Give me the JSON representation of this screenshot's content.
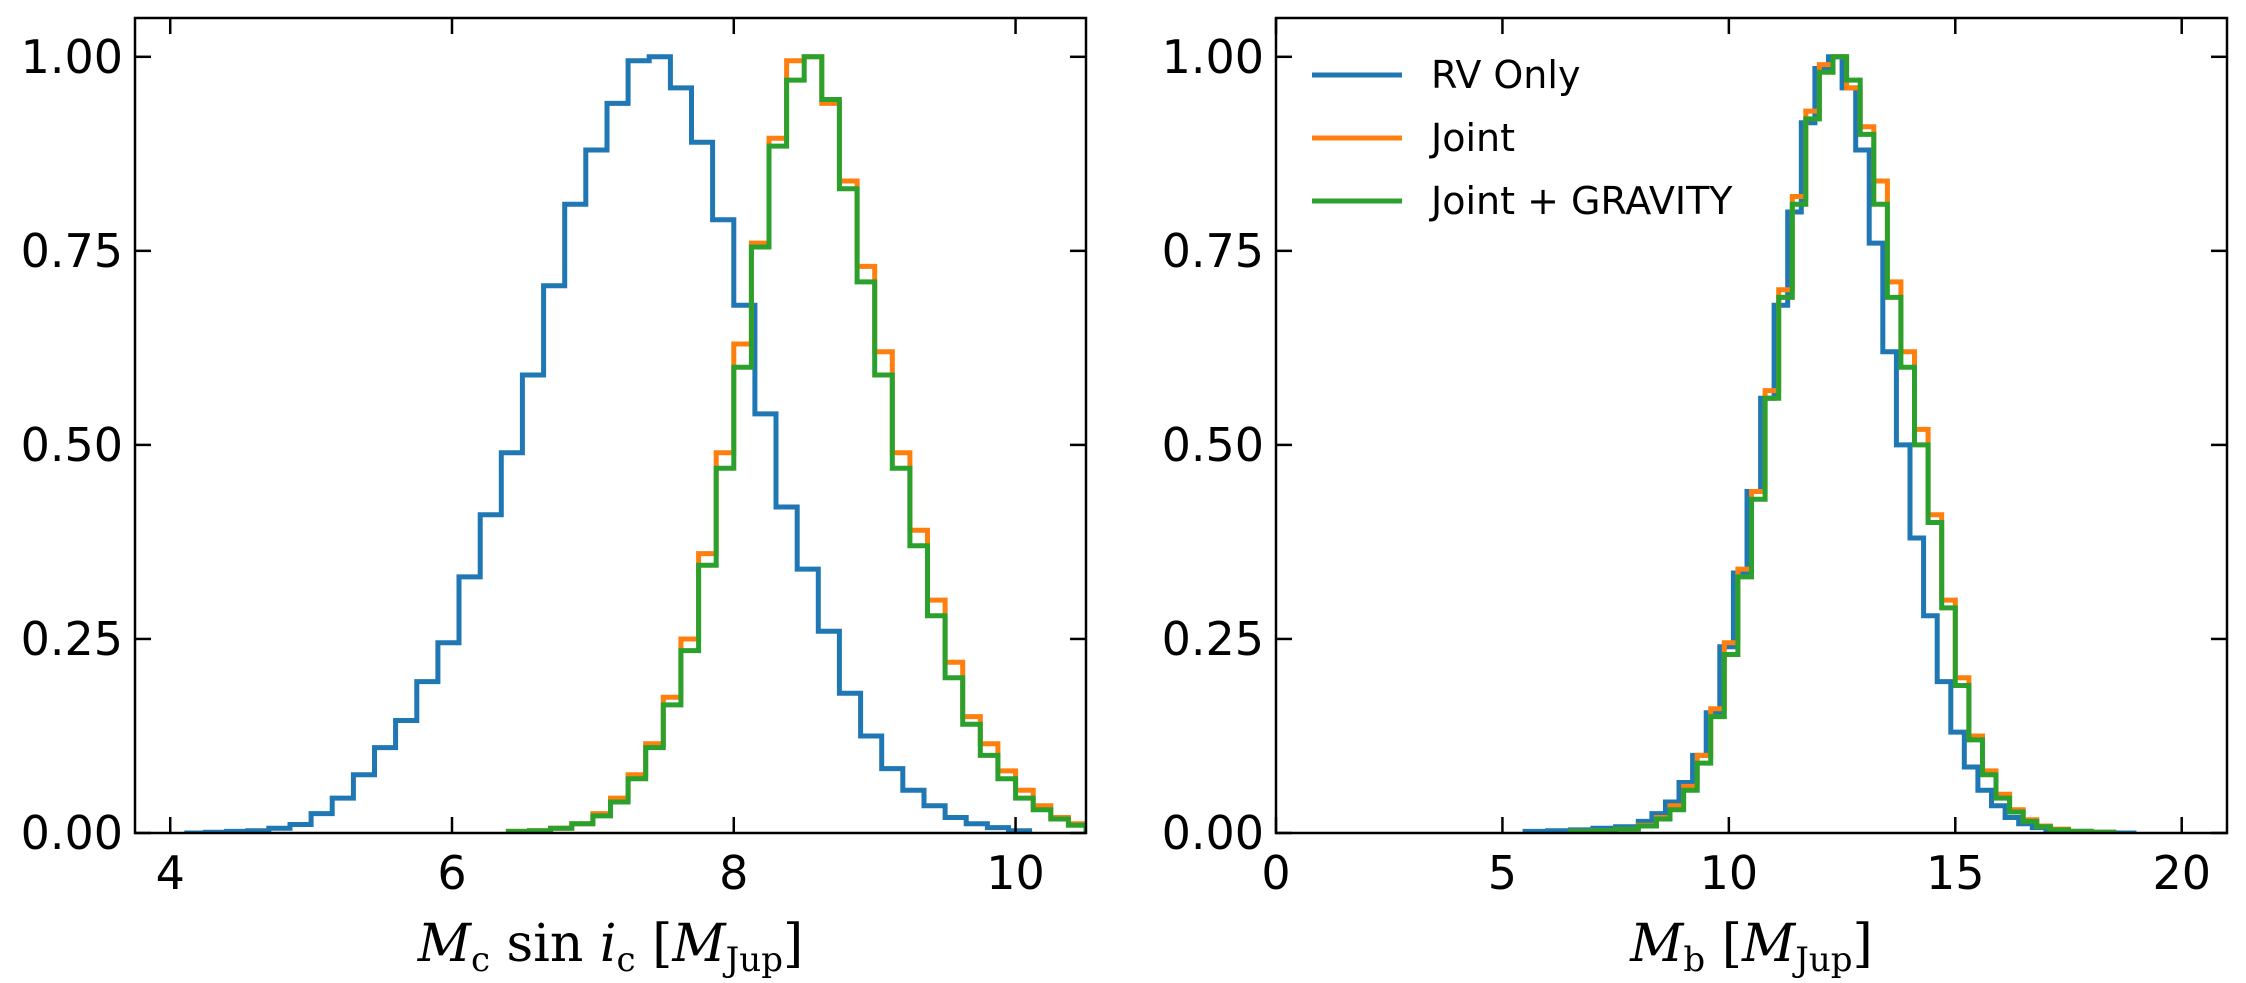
{
  "chart_data": [
    {
      "type": "histogram",
      "panel": "left",
      "xlabel": {
        "main": "M",
        "sub": "c",
        "mid": " sin ",
        "ivar": "i",
        "isub": "c",
        "open": " [",
        "unit": "M",
        "unitsub": "Jup",
        "close": "]"
      },
      "ylabel": "",
      "xlim": [
        3.75,
        10.5
      ],
      "ylim": [
        0,
        1.05
      ],
      "xticks": [
        4,
        6,
        8,
        10
      ],
      "xticklabels": [
        "4",
        "6",
        "8",
        "10"
      ],
      "yticks": [
        0,
        0.25,
        0.5,
        0.75,
        1.0
      ],
      "yticklabels": [
        "0.00",
        "0.25",
        "0.50",
        "0.75",
        "1.00"
      ],
      "series": [
        {
          "color": "#1f77b4",
          "edges": [
            4.1,
            4.25,
            4.4,
            4.55,
            4.7,
            4.85,
            5.0,
            5.15,
            5.3,
            5.45,
            5.6,
            5.75,
            5.9,
            6.05,
            6.2,
            6.35,
            6.5,
            6.65,
            6.8,
            6.95,
            7.1,
            7.25,
            7.4,
            7.55,
            7.7,
            7.85,
            8.0,
            8.15,
            8.3,
            8.45,
            8.6,
            8.75,
            8.9,
            9.05,
            9.2,
            9.35,
            9.5,
            9.65,
            9.8,
            9.95,
            10.1
          ],
          "values": [
            0.0,
            0.001,
            0.002,
            0.003,
            0.006,
            0.011,
            0.025,
            0.045,
            0.075,
            0.11,
            0.145,
            0.195,
            0.245,
            0.33,
            0.41,
            0.49,
            0.59,
            0.705,
            0.81,
            0.88,
            0.94,
            0.995,
            1.0,
            0.96,
            0.89,
            0.79,
            0.68,
            0.54,
            0.42,
            0.34,
            0.26,
            0.18,
            0.125,
            0.083,
            0.055,
            0.035,
            0.02,
            0.012,
            0.007,
            0.003
          ]
        },
        {
          "color": "#ff7f0e",
          "edges": [
            6.4,
            6.55,
            6.7,
            6.85,
            7.0,
            7.125,
            7.25,
            7.375,
            7.5,
            7.625,
            7.75,
            7.875,
            8.0,
            8.125,
            8.25,
            8.375,
            8.5,
            8.625,
            8.75,
            8.875,
            9.0,
            9.125,
            9.25,
            9.375,
            9.5,
            9.625,
            9.75,
            9.875,
            10.0,
            10.125,
            10.25,
            10.375,
            10.5
          ],
          "values": [
            0.002,
            0.003,
            0.006,
            0.012,
            0.025,
            0.045,
            0.075,
            0.115,
            0.175,
            0.25,
            0.36,
            0.49,
            0.63,
            0.76,
            0.895,
            0.995,
            1.0,
            0.94,
            0.84,
            0.73,
            0.62,
            0.49,
            0.39,
            0.3,
            0.22,
            0.15,
            0.115,
            0.08,
            0.055,
            0.035,
            0.02,
            0.012
          ]
        },
        {
          "color": "#2ca02c",
          "edges": [
            6.4,
            6.55,
            6.7,
            6.85,
            7.0,
            7.125,
            7.25,
            7.375,
            7.5,
            7.625,
            7.75,
            7.875,
            8.0,
            8.125,
            8.25,
            8.375,
            8.5,
            8.625,
            8.75,
            8.875,
            9.0,
            9.125,
            9.25,
            9.375,
            9.5,
            9.625,
            9.75,
            9.875,
            10.0,
            10.125,
            10.25,
            10.375,
            10.5
          ],
          "values": [
            0.002,
            0.003,
            0.006,
            0.012,
            0.022,
            0.04,
            0.07,
            0.11,
            0.165,
            0.235,
            0.345,
            0.47,
            0.6,
            0.755,
            0.885,
            0.97,
            1.0,
            0.945,
            0.83,
            0.71,
            0.59,
            0.47,
            0.37,
            0.28,
            0.2,
            0.14,
            0.1,
            0.07,
            0.045,
            0.03,
            0.018,
            0.01
          ]
        }
      ]
    },
    {
      "type": "histogram",
      "panel": "right",
      "xlabel": {
        "main": "M",
        "sub": "b",
        "open": " [",
        "unit": "M",
        "unitsub": "Jup",
        "close": "]"
      },
      "ylabel": "",
      "xlim": [
        0,
        21
      ],
      "ylim": [
        0,
        1.05
      ],
      "xticks": [
        0,
        5,
        10,
        15,
        20
      ],
      "xticklabels": [
        "0",
        "5",
        "10",
        "15",
        "20"
      ],
      "yticks": [
        0,
        0.25,
        0.5,
        0.75,
        1.0
      ],
      "yticklabels": [
        "0.00",
        "0.25",
        "0.50",
        "0.75",
        "1.00"
      ],
      "legend": {
        "position": "upper-left",
        "entries": [
          "RV Only",
          "Joint",
          "Joint + GRAVITY"
        ]
      },
      "series": [
        {
          "name": "RV Only",
          "color": "#1f77b4",
          "edges": [
            5.5,
            6.0,
            6.5,
            7.0,
            7.5,
            8.0,
            8.3,
            8.6,
            8.9,
            9.2,
            9.5,
            9.8,
            10.1,
            10.4,
            10.7,
            11.0,
            11.3,
            11.6,
            11.9,
            12.2,
            12.5,
            12.8,
            13.1,
            13.4,
            13.7,
            14.0,
            14.3,
            14.6,
            14.9,
            15.2,
            15.5,
            15.8,
            16.1,
            16.4,
            16.7,
            17.0,
            17.5,
            18.0,
            18.5,
            19.0
          ],
          "values": [
            0.002,
            0.003,
            0.004,
            0.006,
            0.008,
            0.015,
            0.025,
            0.04,
            0.065,
            0.1,
            0.155,
            0.24,
            0.335,
            0.44,
            0.56,
            0.68,
            0.8,
            0.915,
            0.985,
            1.0,
            0.96,
            0.88,
            0.76,
            0.62,
            0.5,
            0.38,
            0.28,
            0.195,
            0.13,
            0.085,
            0.055,
            0.035,
            0.02,
            0.012,
            0.007,
            0.004,
            0.002,
            0.001,
            0.0
          ]
        },
        {
          "name": "Joint",
          "color": "#ff7f0e",
          "edges": [
            6.5,
            7.0,
            7.5,
            8.0,
            8.4,
            8.7,
            9.0,
            9.3,
            9.6,
            9.9,
            10.2,
            10.5,
            10.8,
            11.1,
            11.4,
            11.7,
            12.0,
            12.3,
            12.6,
            12.9,
            13.2,
            13.5,
            13.8,
            14.1,
            14.4,
            14.7,
            15.0,
            15.3,
            15.6,
            15.9,
            16.2,
            16.5,
            16.8,
            17.1,
            17.5,
            18.0,
            18.5
          ],
          "values": [
            0.002,
            0.003,
            0.005,
            0.01,
            0.02,
            0.035,
            0.06,
            0.1,
            0.16,
            0.245,
            0.34,
            0.44,
            0.57,
            0.7,
            0.82,
            0.93,
            0.99,
            1.0,
            0.96,
            0.91,
            0.84,
            0.71,
            0.62,
            0.52,
            0.41,
            0.3,
            0.2,
            0.125,
            0.08,
            0.05,
            0.03,
            0.017,
            0.009,
            0.005,
            0.002,
            0.001
          ]
        },
        {
          "name": "Joint + GRAVITY",
          "color": "#2ca02c",
          "edges": [
            6.5,
            7.0,
            7.5,
            8.0,
            8.4,
            8.7,
            9.0,
            9.3,
            9.6,
            9.9,
            10.2,
            10.5,
            10.8,
            11.1,
            11.4,
            11.7,
            12.0,
            12.3,
            12.6,
            12.9,
            13.2,
            13.5,
            13.8,
            14.1,
            14.4,
            14.7,
            15.0,
            15.3,
            15.6,
            15.9,
            16.2,
            16.5,
            16.8,
            17.1,
            17.5,
            18.0,
            18.5
          ],
          "values": [
            0.002,
            0.003,
            0.005,
            0.009,
            0.018,
            0.03,
            0.055,
            0.09,
            0.15,
            0.23,
            0.33,
            0.43,
            0.56,
            0.69,
            0.81,
            0.92,
            0.98,
            1.0,
            0.97,
            0.9,
            0.81,
            0.69,
            0.6,
            0.5,
            0.4,
            0.29,
            0.19,
            0.12,
            0.075,
            0.045,
            0.027,
            0.015,
            0.008,
            0.004,
            0.002,
            0.001
          ]
        }
      ]
    }
  ]
}
